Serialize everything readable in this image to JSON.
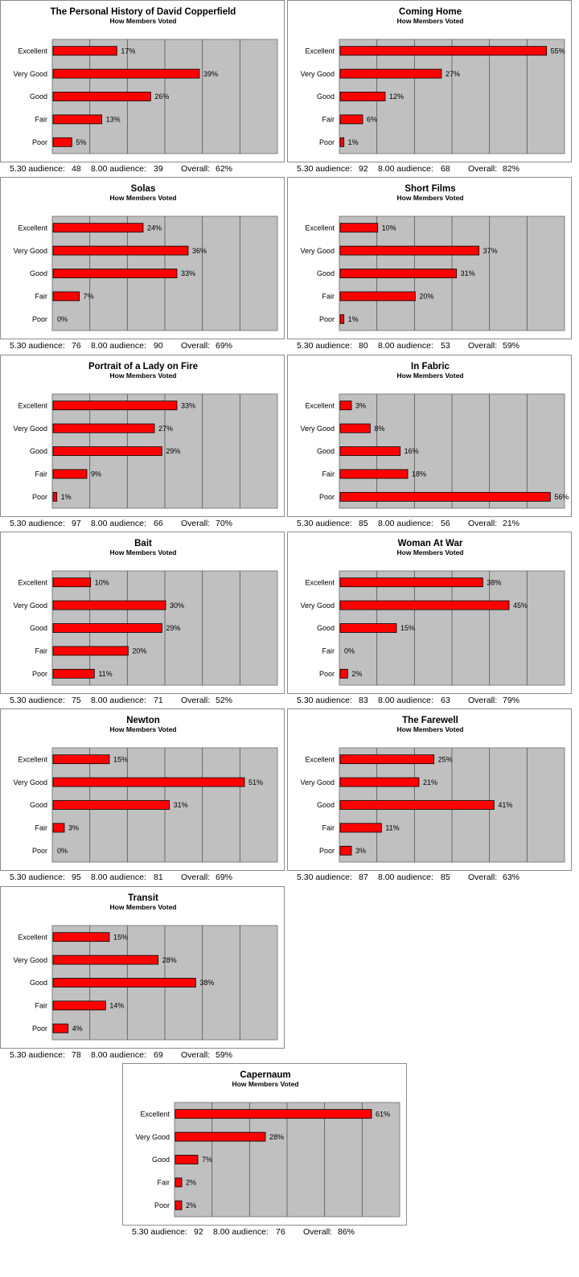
{
  "colors": {
    "bar": "#ff0000",
    "bar_stroke": "#000000",
    "plot_bg": "#c0c0c0",
    "grid": "#555555"
  },
  "stat_labels": {
    "early": "5.30 audience:",
    "late": "8.00 audience:",
    "overall": "Overall:"
  },
  "chart_data": [
    {
      "type": "bar",
      "orientation": "horizontal",
      "title": "The Personal History of David Copperfield",
      "subtitle": "How Members Voted",
      "categories": [
        "Excellent",
        "Very Good",
        "Good",
        "Fair",
        "Poor"
      ],
      "values": [
        17,
        39,
        26,
        13,
        5
      ],
      "labels": [
        "17%",
        "39%",
        "26%",
        "13%",
        "5%"
      ],
      "xlim": [
        0,
        60
      ],
      "grid": true,
      "stats": {
        "early": "48",
        "late": "39",
        "overall": "62%"
      }
    },
    {
      "type": "bar",
      "orientation": "horizontal",
      "title": "Coming Home",
      "subtitle": "How Members Voted",
      "categories": [
        "Excellent",
        "Very Good",
        "Good",
        "Fair",
        "Poor"
      ],
      "values": [
        55,
        27,
        12,
        6,
        1
      ],
      "labels": [
        "55%",
        "27%",
        "12%",
        "6%",
        "1%"
      ],
      "xlim": [
        0,
        60
      ],
      "grid": true,
      "stats": {
        "early": "92",
        "late": "68",
        "overall": "82%"
      }
    },
    {
      "type": "bar",
      "orientation": "horizontal",
      "title": "Solas",
      "subtitle": "How Members Voted",
      "categories": [
        "Excellent",
        "Very Good",
        "Good",
        "Fair",
        "Poor"
      ],
      "values": [
        24,
        36,
        33,
        7,
        0
      ],
      "labels": [
        "24%",
        "36%",
        "33%",
        "7%",
        "0%"
      ],
      "xlim": [
        0,
        60
      ],
      "grid": true,
      "stats": {
        "early": "76",
        "late": "90",
        "overall": "69%"
      }
    },
    {
      "type": "bar",
      "orientation": "horizontal",
      "title": "Short Films",
      "subtitle": "How Members Voted",
      "categories": [
        "Excellent",
        "Very Good",
        "Good",
        "Fair",
        "Poor"
      ],
      "values": [
        10,
        37,
        31,
        20,
        1
      ],
      "labels": [
        "10%",
        "37%",
        "31%",
        "20%",
        "1%"
      ],
      "xlim": [
        0,
        60
      ],
      "grid": true,
      "stats": {
        "early": "80",
        "late": "53",
        "overall": "59%"
      }
    },
    {
      "type": "bar",
      "orientation": "horizontal",
      "title": "Portrait of a Lady on Fire",
      "subtitle": "How Members Voted",
      "categories": [
        "Excellent",
        "Very Good",
        "Good",
        "Fair",
        "Poor"
      ],
      "values": [
        33,
        27,
        29,
        9,
        1
      ],
      "labels": [
        "33%",
        "27%",
        "29%",
        "9%",
        "1%"
      ],
      "xlim": [
        0,
        60
      ],
      "grid": true,
      "stats": {
        "early": "97",
        "late": "66",
        "overall": "70%"
      }
    },
    {
      "type": "bar",
      "orientation": "horizontal",
      "title": "In Fabric",
      "subtitle": "How Members Voted",
      "categories": [
        "Excellent",
        "Very Good",
        "Good",
        "Fair",
        "Poor"
      ],
      "values": [
        3,
        8,
        16,
        18,
        56
      ],
      "labels": [
        "3%",
        "8%",
        "16%",
        "18%",
        "56%"
      ],
      "xlim": [
        0,
        60
      ],
      "grid": true,
      "stats": {
        "early": "85",
        "late": "56",
        "overall": "21%"
      }
    },
    {
      "type": "bar",
      "orientation": "horizontal",
      "title": "Bait",
      "subtitle": "How Members Voted",
      "categories": [
        "Excellent",
        "Very Good",
        "Good",
        "Fair",
        "Poor"
      ],
      "values": [
        10,
        30,
        29,
        20,
        11
      ],
      "labels": [
        "10%",
        "30%",
        "29%",
        "20%",
        "11%"
      ],
      "xlim": [
        0,
        60
      ],
      "grid": true,
      "stats": {
        "early": "75",
        "late": "71",
        "overall": "52%"
      }
    },
    {
      "type": "bar",
      "orientation": "horizontal",
      "title": "Woman At War",
      "subtitle": "How Members Voted",
      "categories": [
        "Excellent",
        "Very Good",
        "Good",
        "Fair",
        "Poor"
      ],
      "values": [
        38,
        45,
        15,
        0,
        2
      ],
      "labels": [
        "38%",
        "45%",
        "15%",
        "0%",
        "2%"
      ],
      "xlim": [
        0,
        60
      ],
      "grid": true,
      "stats": {
        "early": "83",
        "late": "63",
        "overall": "79%"
      }
    },
    {
      "type": "bar",
      "orientation": "horizontal",
      "title": "Newton",
      "subtitle": "How Members Voted",
      "categories": [
        "Excellent",
        "Very Good",
        "Good",
        "Fair",
        "Poor"
      ],
      "values": [
        15,
        51,
        31,
        3,
        0
      ],
      "labels": [
        "15%",
        "51%",
        "31%",
        "3%",
        "0%"
      ],
      "xlim": [
        0,
        60
      ],
      "grid": true,
      "stats": {
        "early": "95",
        "late": "81",
        "overall": "69%"
      }
    },
    {
      "type": "bar",
      "orientation": "horizontal",
      "title": "The Farewell",
      "subtitle": "How Members Voted",
      "categories": [
        "Excellent",
        "Very Good",
        "Good",
        "Fair",
        "Poor"
      ],
      "values": [
        25,
        21,
        41,
        11,
        3
      ],
      "labels": [
        "25%",
        "21%",
        "41%",
        "11%",
        "3%"
      ],
      "xlim": [
        0,
        60
      ],
      "grid": true,
      "stats": {
        "early": "87",
        "late": "85",
        "overall": "63%"
      }
    },
    {
      "type": "bar",
      "orientation": "horizontal",
      "title": "Transit",
      "subtitle": "How Members Voted",
      "categories": [
        "Excellent",
        "Very Good",
        "Good",
        "Fair",
        "Poor"
      ],
      "values": [
        15,
        28,
        38,
        14,
        4
      ],
      "labels": [
        "15%",
        "28%",
        "38%",
        "14%",
        "4%"
      ],
      "xlim": [
        0,
        60
      ],
      "grid": true,
      "stats": {
        "early": "78",
        "late": "69",
        "overall": "59%"
      }
    },
    {
      "type": "bar",
      "orientation": "horizontal",
      "title": "Capernaum",
      "subtitle": "How Members Voted",
      "categories": [
        "Excellent",
        "Very Good",
        "Good",
        "Fair",
        "Poor"
      ],
      "values": [
        61,
        28,
        7,
        2,
        2
      ],
      "labels": [
        "61%",
        "28%",
        "7%",
        "2%",
        "2%"
      ],
      "xlim": [
        0,
        70
      ],
      "grid": true,
      "stats": {
        "early": "92",
        "late": "76",
        "overall": "86%"
      }
    }
  ]
}
